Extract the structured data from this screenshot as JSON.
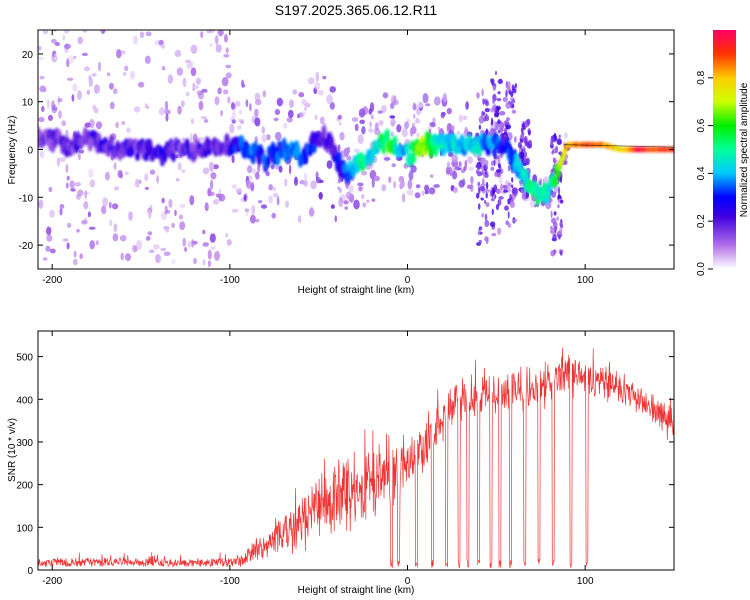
{
  "title": "S197.2025.365.06.12.R11",
  "colors": {
    "snr_line": "#ee3333",
    "background": "#ffffff",
    "spectrum_low": "#d9c6f0",
    "spectrum_mid": "#5a12d8"
  },
  "chart_data": [
    {
      "type": "heatmap",
      "title": "S197.2025.365.06.12.R11",
      "xlabel": "Height of straight line (km)",
      "ylabel": "Frequency (Hz)",
      "xlim": [
        -208,
        150
      ],
      "ylim": [
        -25,
        25
      ],
      "xticks": [
        -200,
        -100,
        0,
        100
      ],
      "yticks": [
        -20,
        -10,
        0,
        10,
        20
      ],
      "colorbar": {
        "label": "Normalized spectral amplitude",
        "range": [
          0,
          1
        ],
        "ticks": [
          "0.0",
          "0.2",
          "0.4",
          "0.6",
          "0.8"
        ],
        "tick_values": [
          0.0,
          0.2,
          0.4,
          0.6,
          0.8
        ]
      },
      "ridge": [
        {
          "x": -200,
          "f": 2,
          "a": 0.15
        },
        {
          "x": -190,
          "f": 1,
          "a": 0.15
        },
        {
          "x": -180,
          "f": 2,
          "a": 0.2
        },
        {
          "x": -170,
          "f": 1,
          "a": 0.2
        },
        {
          "x": -160,
          "f": 0,
          "a": 0.18
        },
        {
          "x": -150,
          "f": 0,
          "a": 0.2
        },
        {
          "x": -140,
          "f": -1,
          "a": 0.22
        },
        {
          "x": -130,
          "f": 0,
          "a": 0.2
        },
        {
          "x": -120,
          "f": 0,
          "a": 0.2
        },
        {
          "x": -110,
          "f": 1,
          "a": 0.18
        },
        {
          "x": -100,
          "f": 1,
          "a": 0.22
        },
        {
          "x": -95,
          "f": 1,
          "a": 0.28
        },
        {
          "x": -90,
          "f": 0,
          "a": 0.35
        },
        {
          "x": -85,
          "f": -1,
          "a": 0.32
        },
        {
          "x": -80,
          "f": -2,
          "a": 0.3
        },
        {
          "x": -70,
          "f": 0,
          "a": 0.3
        },
        {
          "x": -60,
          "f": -1,
          "a": 0.35
        },
        {
          "x": -55,
          "f": 0,
          "a": 0.3
        },
        {
          "x": -50,
          "f": 3,
          "a": 0.25
        },
        {
          "x": -45,
          "f": 2,
          "a": 0.2
        },
        {
          "x": -35,
          "f": -5,
          "a": 0.3
        },
        {
          "x": -25,
          "f": -2,
          "a": 0.55
        },
        {
          "x": -20,
          "f": -1,
          "a": 0.38
        },
        {
          "x": -15,
          "f": 1,
          "a": 0.5
        },
        {
          "x": -10,
          "f": 2,
          "a": 0.6
        },
        {
          "x": -5,
          "f": 0,
          "a": 0.4
        },
        {
          "x": 0,
          "f": -1,
          "a": 0.4
        },
        {
          "x": 5,
          "f": 0,
          "a": 0.6
        },
        {
          "x": 10,
          "f": 1,
          "a": 0.7
        },
        {
          "x": 15,
          "f": 1,
          "a": 0.45
        },
        {
          "x": 30,
          "f": 1,
          "a": 0.42
        },
        {
          "x": 38,
          "f": 1,
          "a": 0.45
        },
        {
          "x": 55,
          "f": 1,
          "a": 0.25
        },
        {
          "x": 70,
          "f": -9,
          "a": 0.55
        },
        {
          "x": 75,
          "f": -9,
          "a": 0.45
        },
        {
          "x": 80,
          "f": -9,
          "a": 0.45
        },
        {
          "x": 90,
          "f": 1,
          "a": 0.8
        },
        {
          "x": 100,
          "f": 1,
          "a": 0.9
        },
        {
          "x": 110,
          "f": 1,
          "a": 0.85
        },
        {
          "x": 120,
          "f": 0,
          "a": 0.75
        },
        {
          "x": 130,
          "f": 0,
          "a": 0.92
        },
        {
          "x": 140,
          "f": 0,
          "a": 0.9
        },
        {
          "x": 150,
          "f": 0,
          "a": 0.88
        }
      ]
    },
    {
      "type": "line",
      "xlabel": "Height of straight line (km)",
      "ylabel": "SNR (10 * v/v)",
      "xlim": [
        -208,
        150
      ],
      "ylim": [
        0,
        560
      ],
      "xticks": [
        -200,
        -100,
        0,
        100
      ],
      "yticks": [
        0,
        100,
        200,
        300,
        400,
        500
      ],
      "series": [
        {
          "name": "SNR",
          "envelope": [
            {
              "x": -208,
              "lo": 5,
              "hi": 40
            },
            {
              "x": -180,
              "lo": 5,
              "hi": 45
            },
            {
              "x": -150,
              "lo": 5,
              "hi": 42
            },
            {
              "x": -120,
              "lo": 5,
              "hi": 38
            },
            {
              "x": -100,
              "lo": 5,
              "hi": 45
            },
            {
              "x": -90,
              "lo": 5,
              "hi": 70
            },
            {
              "x": -80,
              "lo": 5,
              "hi": 110
            },
            {
              "x": -70,
              "lo": 10,
              "hi": 150
            },
            {
              "x": -60,
              "lo": 20,
              "hi": 190
            },
            {
              "x": -50,
              "lo": 30,
              "hi": 230
            },
            {
              "x": -40,
              "lo": 40,
              "hi": 270
            },
            {
              "x": -30,
              "lo": 50,
              "hi": 300
            },
            {
              "x": -20,
              "lo": 70,
              "hi": 310
            },
            {
              "x": -10,
              "lo": 100,
              "hi": 330
            },
            {
              "x": 0,
              "lo": 140,
              "hi": 340
            },
            {
              "x": 10,
              "lo": 190,
              "hi": 380
            },
            {
              "x": 20,
              "lo": 270,
              "hi": 440
            },
            {
              "x": 30,
              "lo": 330,
              "hi": 470
            },
            {
              "x": 40,
              "lo": 330,
              "hi": 470
            },
            {
              "x": 50,
              "lo": 330,
              "hi": 470
            },
            {
              "x": 60,
              "lo": 340,
              "hi": 490
            },
            {
              "x": 70,
              "lo": 340,
              "hi": 480
            },
            {
              "x": 80,
              "lo": 350,
              "hi": 500
            },
            {
              "x": 90,
              "lo": 370,
              "hi": 540
            },
            {
              "x": 100,
              "lo": 380,
              "hi": 510
            },
            {
              "x": 110,
              "lo": 380,
              "hi": 490
            },
            {
              "x": 120,
              "lo": 370,
              "hi": 470
            },
            {
              "x": 130,
              "lo": 350,
              "hi": 440
            },
            {
              "x": 140,
              "lo": 320,
              "hi": 410
            },
            {
              "x": 150,
              "lo": 270,
              "hi": 390
            }
          ],
          "dropouts_x": [
            -9,
            -5,
            5,
            14,
            22,
            29,
            34,
            40,
            47,
            52,
            58,
            66,
            74,
            82,
            92,
            101
          ]
        }
      ]
    }
  ]
}
